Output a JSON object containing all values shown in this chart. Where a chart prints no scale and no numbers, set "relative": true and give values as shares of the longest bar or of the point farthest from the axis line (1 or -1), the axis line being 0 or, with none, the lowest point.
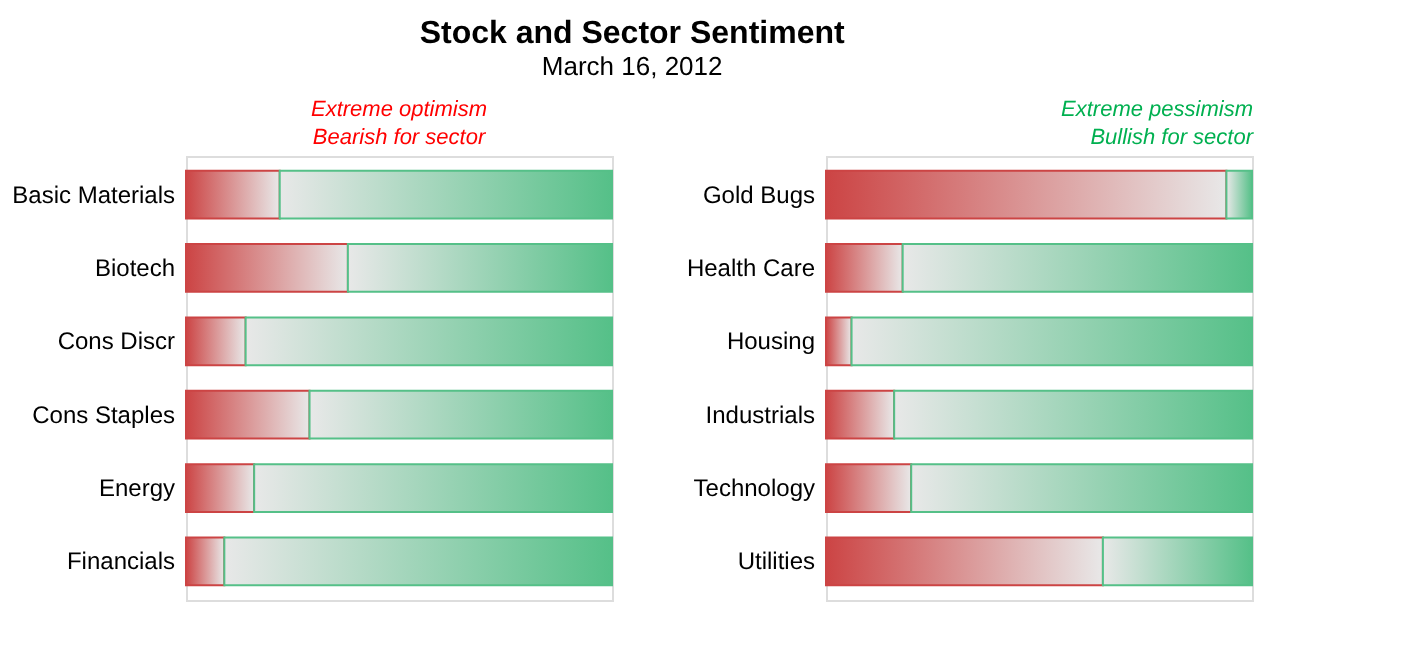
{
  "chart_data": [
    {
      "type": "bar",
      "orientation": "horizontal",
      "stacked": true,
      "relative": true,
      "title": "Stock and Sector Sentiment",
      "subtitle": "March 16, 2012",
      "annotations": [
        "Extreme optimism",
        "Bearish for sector"
      ],
      "categories": [
        "Basic Materials",
        "Biotech",
        "Cons Discr",
        "Cons Staples",
        "Energy",
        "Financials"
      ],
      "tick_labels": "y",
      "series": [
        {
          "color": "#cc4444",
          "values": [
            0.22,
            0.38,
            0.14,
            0.29,
            0.16,
            0.09
          ]
        },
        {
          "color": "#55c088",
          "values": [
            0.78,
            0.62,
            0.86,
            0.71,
            0.84,
            0.91
          ]
        }
      ]
    },
    {
      "type": "bar",
      "orientation": "horizontal",
      "stacked": true,
      "relative": true,
      "annotations": [
        "Extreme pessimism",
        "Bullish for sector"
      ],
      "categories": [
        "Gold Bugs",
        "Health Care",
        "Housing",
        "Industrials",
        "Technology",
        "Utilities"
      ],
      "tick_labels": "y",
      "series": [
        {
          "color": "#cc4444",
          "values": [
            0.94,
            0.18,
            0.06,
            0.16,
            0.2,
            0.65
          ]
        },
        {
          "color": "#55c088",
          "values": [
            0.06,
            0.82,
            0.94,
            0.84,
            0.8,
            0.35
          ]
        }
      ]
    }
  ]
}
